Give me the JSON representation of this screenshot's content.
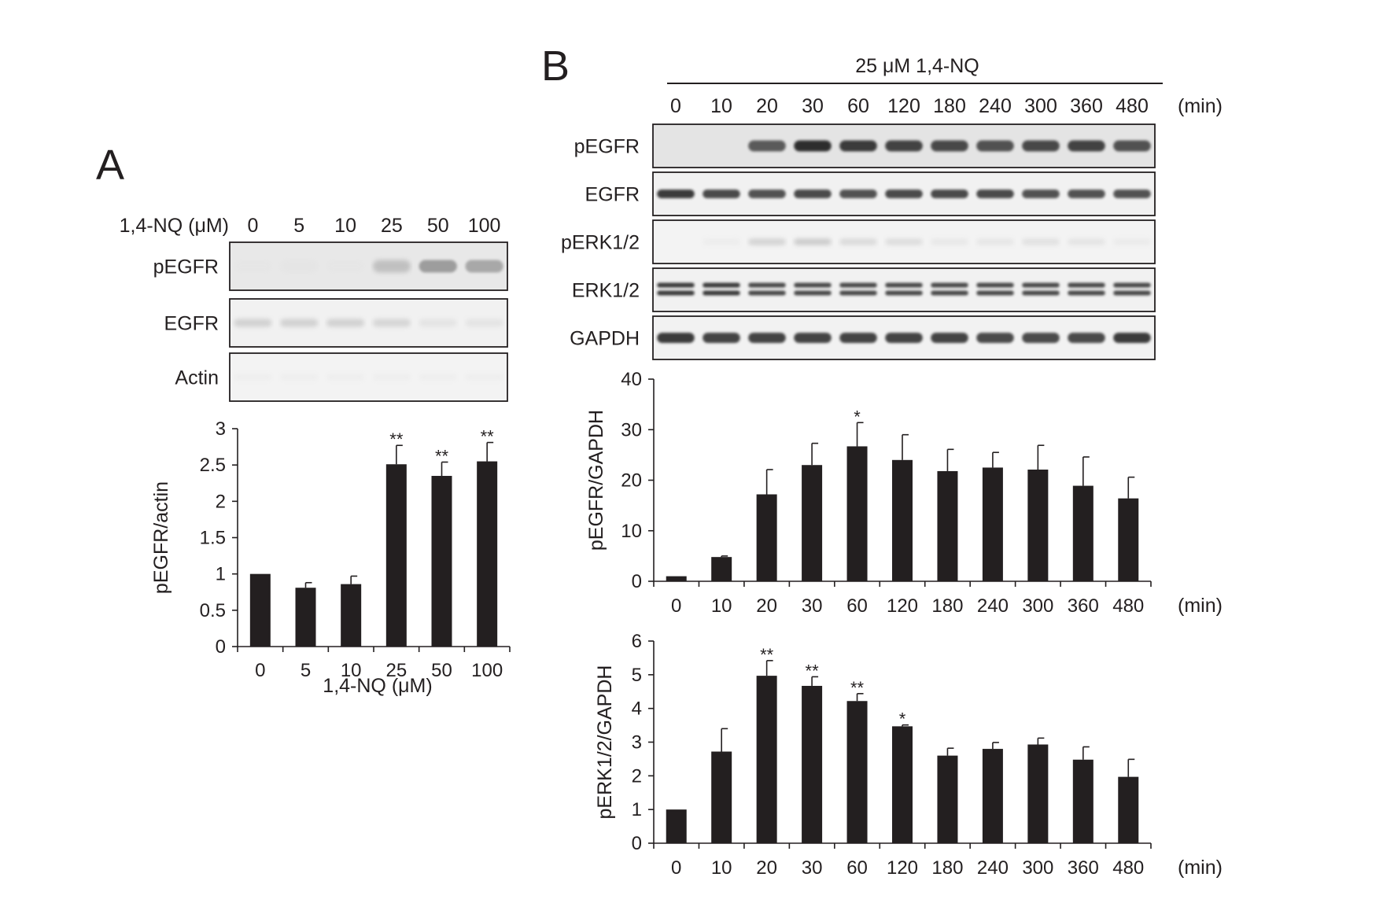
{
  "panel_a": {
    "letter": "A",
    "blot": {
      "treatment_label": "1,4-NQ (μM)",
      "lanes": [
        "0",
        "5",
        "10",
        "25",
        "50",
        "100"
      ],
      "rows": [
        "pEGFR",
        "EGFR",
        "Actin"
      ]
    }
  },
  "panel_b": {
    "letter": "B",
    "blot": {
      "treatment_label": "25 μM 1,4-NQ",
      "unit": "(min)",
      "lanes": [
        "0",
        "10",
        "20",
        "30",
        "60",
        "120",
        "180",
        "240",
        "300",
        "360",
        "480"
      ],
      "rows": [
        "pEGFR",
        "EGFR",
        "pERK1/2",
        "ERK1/2",
        "GAPDH"
      ]
    }
  },
  "chart_data": [
    {
      "id": "a",
      "type": "bar",
      "title": "",
      "categories": [
        "0",
        "5",
        "10",
        "25",
        "50",
        "100"
      ],
      "values": [
        1.0,
        0.81,
        0.86,
        2.51,
        2.35,
        2.55
      ],
      "errors": [
        0,
        0.07,
        0.11,
        0.26,
        0.19,
        0.26
      ],
      "significance": [
        "",
        "",
        "",
        "**",
        "**",
        "**"
      ],
      "xlabel": "1,4-NQ (μM)",
      "ylabel": "pEGFR/actin",
      "ylim": [
        0,
        3
      ],
      "yticks": [
        "0",
        "0.5",
        "1",
        "1.5",
        "2",
        "2.5",
        "3"
      ],
      "bar_color": "#231f20",
      "grid": false
    },
    {
      "id": "b1",
      "type": "bar",
      "title": "",
      "categories": [
        "0",
        "10",
        "20",
        "30",
        "60",
        "120",
        "180",
        "240",
        "300",
        "360",
        "480"
      ],
      "values": [
        1.0,
        4.8,
        17.2,
        23.0,
        26.7,
        24.0,
        21.8,
        22.5,
        22.1,
        18.9,
        16.4
      ],
      "errors": [
        0,
        0.2,
        4.9,
        4.3,
        4.7,
        5.0,
        4.3,
        3.0,
        4.8,
        5.7,
        4.2
      ],
      "significance": [
        "",
        "",
        "",
        "",
        "*",
        "",
        "",
        "",
        "",
        "",
        ""
      ],
      "xlabel": "(min)",
      "ylabel": "pEGFR/GAPDH",
      "ylim": [
        0,
        40
      ],
      "yticks": [
        "0",
        "10",
        "20",
        "30",
        "40"
      ],
      "bar_color": "#231f20",
      "grid": false
    },
    {
      "id": "b2",
      "type": "bar",
      "title": "",
      "categories": [
        "0",
        "10",
        "20",
        "30",
        "60",
        "120",
        "180",
        "240",
        "300",
        "360",
        "480"
      ],
      "values": [
        1.0,
        2.72,
        4.97,
        4.67,
        4.22,
        3.47,
        2.6,
        2.8,
        2.93,
        2.48,
        1.97
      ],
      "errors": [
        0,
        0.68,
        0.45,
        0.27,
        0.22,
        0.04,
        0.22,
        0.19,
        0.19,
        0.38,
        0.52
      ],
      "significance": [
        "",
        "",
        "**",
        "**",
        "**",
        "*",
        "",
        "",
        "",
        "",
        ""
      ],
      "xlabel": "(min)",
      "ylabel": "pERK1/2/GAPDH",
      "ylim": [
        0,
        6
      ],
      "yticks": [
        "0",
        "1",
        "2",
        "3",
        "4",
        "5",
        "6"
      ],
      "bar_color": "#231f20",
      "grid": false
    }
  ]
}
